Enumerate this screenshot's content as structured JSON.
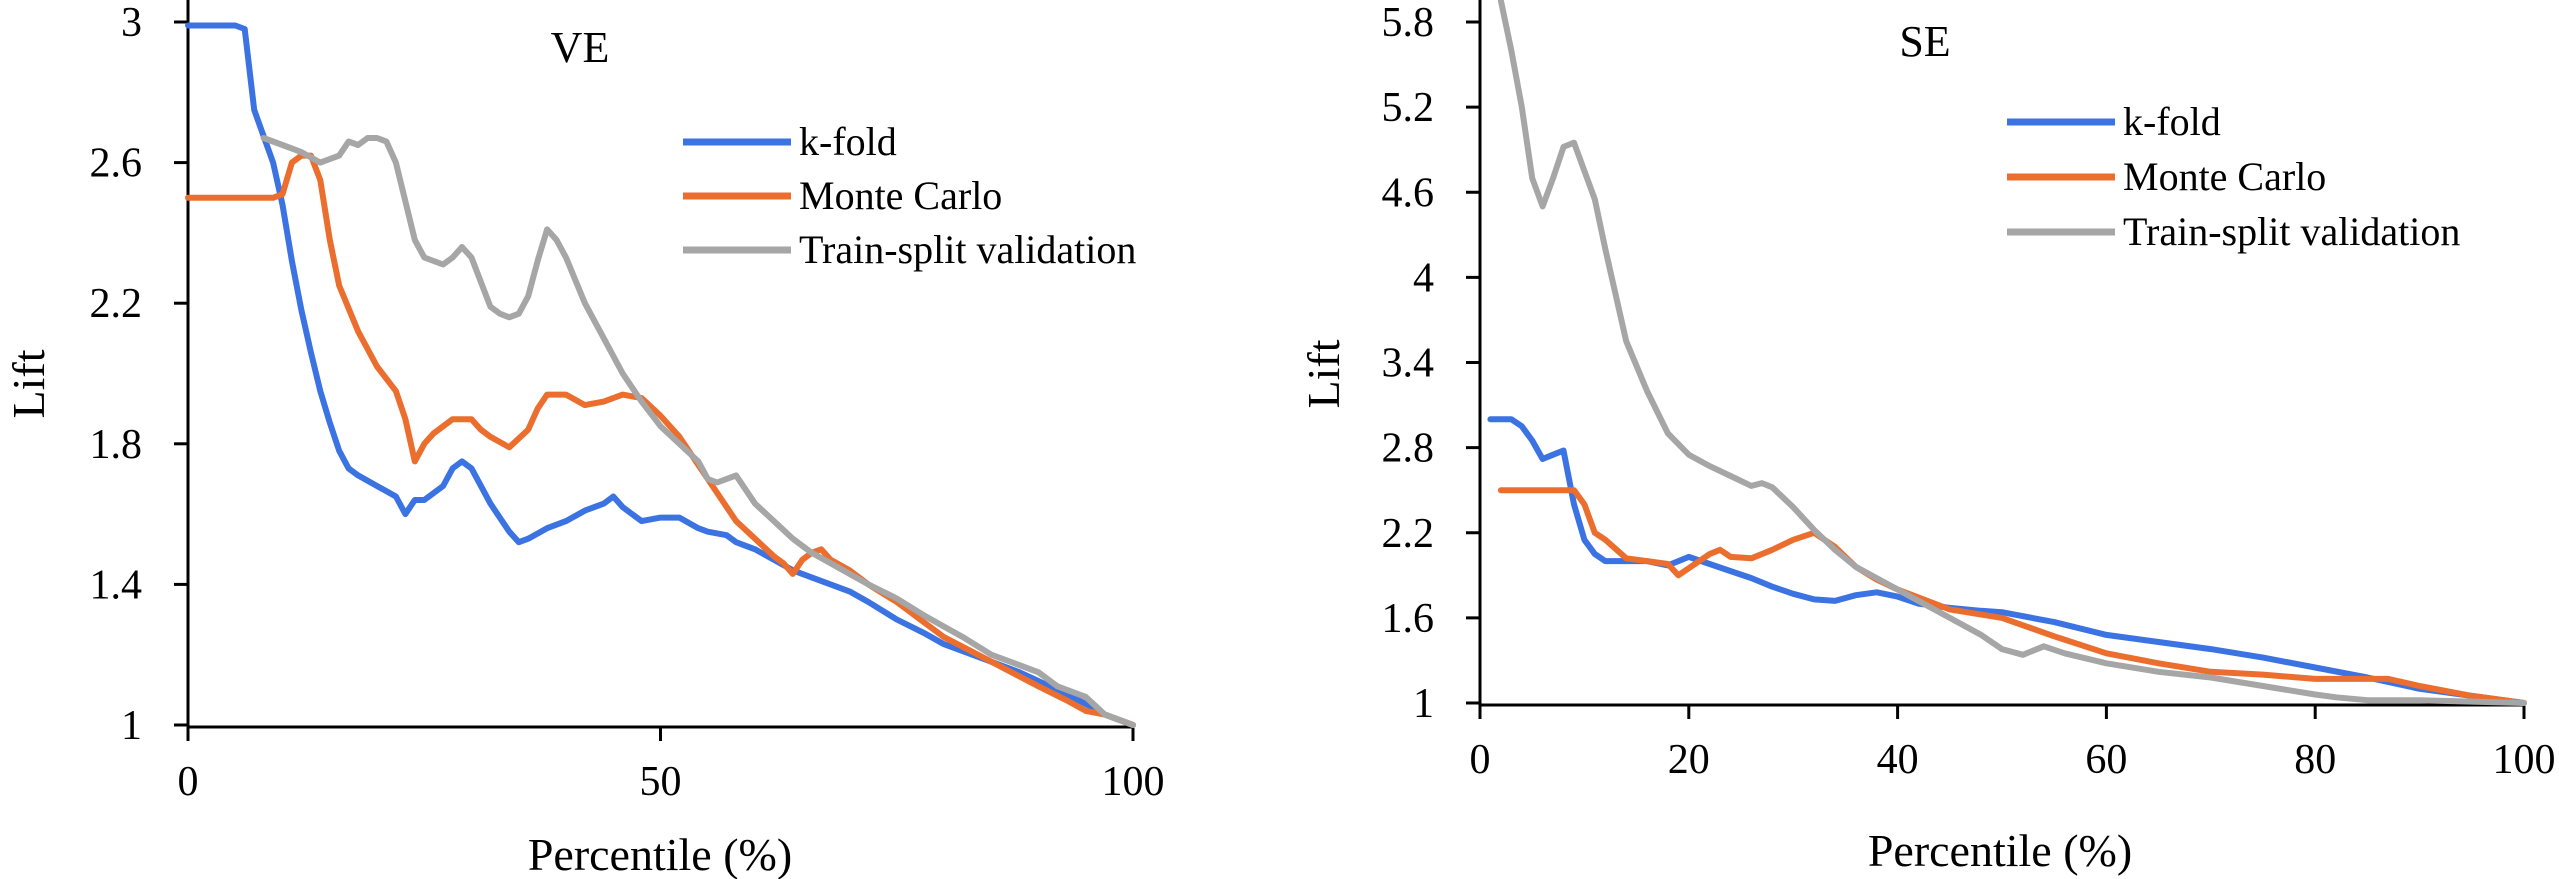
{
  "colors": {
    "k-fold": "#3B73E3",
    "Monte Carlo": "#EC6E2E",
    "Train-split validation": "#A6A6A6"
  },
  "chart_data": [
    {
      "type": "line",
      "title": "VE",
      "xlabel": "Percentile (%)",
      "ylabel": "Lift",
      "xlim": [
        0,
        100
      ],
      "ylim": [
        1,
        3
      ],
      "xticks": [
        "0",
        "50",
        "100"
      ],
      "yticks": [
        "1",
        "1.4",
        "1.8",
        "2.2",
        "2.6",
        "3"
      ],
      "grid": false,
      "legend": "top-right",
      "series": [
        {
          "name": "k-fold",
          "x": [
            0,
            3,
            5,
            6,
            7,
            9,
            10,
            11,
            12,
            13,
            14,
            15,
            16,
            17,
            18,
            20,
            22,
            23,
            24,
            25,
            27,
            28,
            29,
            30,
            32,
            34,
            35,
            36,
            38,
            40,
            42,
            44,
            45,
            46,
            47,
            48,
            50,
            52,
            54,
            55,
            57,
            58,
            60,
            62,
            64,
            65,
            66,
            68,
            70,
            72,
            75,
            78,
            80,
            84,
            88,
            92,
            95,
            97,
            99,
            100
          ],
          "y": [
            2.99,
            2.99,
            2.99,
            2.98,
            2.75,
            2.6,
            2.48,
            2.32,
            2.18,
            2.06,
            1.95,
            1.86,
            1.78,
            1.73,
            1.71,
            1.68,
            1.65,
            1.6,
            1.64,
            1.64,
            1.68,
            1.73,
            1.75,
            1.73,
            1.63,
            1.55,
            1.52,
            1.53,
            1.56,
            1.58,
            1.61,
            1.63,
            1.65,
            1.62,
            1.6,
            1.58,
            1.59,
            1.59,
            1.56,
            1.55,
            1.54,
            1.52,
            1.5,
            1.47,
            1.44,
            1.43,
            1.42,
            1.4,
            1.38,
            1.35,
            1.3,
            1.26,
            1.23,
            1.19,
            1.15,
            1.1,
            1.06,
            1.03,
            1.01,
            1
          ]
        },
        {
          "name": "Monte Carlo",
          "x": [
            0,
            3,
            6,
            8,
            9,
            10,
            11,
            12,
            13,
            14,
            15,
            16,
            18,
            20,
            22,
            23,
            24,
            25,
            26,
            28,
            30,
            31,
            32,
            34,
            36,
            37,
            38,
            40,
            42,
            44,
            46,
            48,
            50,
            52,
            54,
            56,
            58,
            60,
            62,
            63,
            64,
            65,
            66,
            67,
            68,
            70,
            72,
            75,
            78,
            80,
            85,
            90,
            93,
            95,
            97,
            100
          ],
          "y": [
            2.5,
            2.5,
            2.5,
            2.5,
            2.5,
            2.51,
            2.6,
            2.62,
            2.62,
            2.55,
            2.38,
            2.25,
            2.12,
            2.02,
            1.95,
            1.87,
            1.75,
            1.8,
            1.83,
            1.87,
            1.87,
            1.84,
            1.82,
            1.79,
            1.84,
            1.9,
            1.94,
            1.94,
            1.91,
            1.92,
            1.94,
            1.93,
            1.88,
            1.82,
            1.74,
            1.66,
            1.58,
            1.53,
            1.48,
            1.46,
            1.43,
            1.47,
            1.49,
            1.5,
            1.47,
            1.44,
            1.4,
            1.35,
            1.29,
            1.25,
            1.18,
            1.11,
            1.07,
            1.04,
            1.03,
            1
          ]
        },
        {
          "name": "Train-split validation",
          "x": [
            8,
            10,
            12,
            14,
            16,
            17,
            18,
            19,
            20,
            21,
            22,
            24,
            25,
            26,
            27,
            28,
            29,
            30,
            31,
            32,
            33,
            34,
            35,
            36,
            37,
            38,
            39,
            40,
            42,
            44,
            46,
            48,
            50,
            52,
            54,
            55,
            56,
            58,
            60,
            62,
            64,
            66,
            68,
            70,
            72,
            75,
            78,
            80,
            82,
            85,
            88,
            90,
            92,
            95,
            97,
            100
          ],
          "y": [
            2.67,
            2.65,
            2.63,
            2.6,
            2.62,
            2.66,
            2.65,
            2.67,
            2.67,
            2.66,
            2.6,
            2.38,
            2.33,
            2.32,
            2.31,
            2.33,
            2.36,
            2.33,
            2.26,
            2.19,
            2.17,
            2.16,
            2.17,
            2.22,
            2.32,
            2.41,
            2.38,
            2.33,
            2.2,
            2.1,
            2.0,
            1.92,
            1.85,
            1.8,
            1.75,
            1.7,
            1.69,
            1.71,
            1.63,
            1.58,
            1.53,
            1.49,
            1.46,
            1.43,
            1.4,
            1.36,
            1.31,
            1.28,
            1.25,
            1.2,
            1.17,
            1.15,
            1.11,
            1.08,
            1.03,
            1
          ]
        }
      ]
    },
    {
      "type": "line",
      "title": "SE",
      "xlabel": "Percentile (%)",
      "ylabel": "Lift",
      "xlim": [
        0,
        100
      ],
      "ylim": [
        1,
        5.8
      ],
      "xticks": [
        "0",
        "20",
        "40",
        "60",
        "80",
        "100"
      ],
      "yticks": [
        "1",
        "1.6",
        "2.2",
        "2.8",
        "3.4",
        "4",
        "4.6",
        "5.2",
        "5.8"
      ],
      "grid": false,
      "legend": "top-right",
      "series": [
        {
          "name": "k-fold",
          "x": [
            1,
            3,
            4,
            5,
            6,
            7,
            8,
            9,
            10,
            11,
            12,
            14,
            16,
            18,
            19,
            20,
            22,
            24,
            26,
            28,
            30,
            32,
            34,
            36,
            38,
            40,
            42,
            45,
            48,
            50,
            55,
            60,
            65,
            70,
            75,
            80,
            85,
            90,
            95,
            100
          ],
          "y": [
            3.0,
            3.0,
            2.95,
            2.85,
            2.72,
            2.75,
            2.78,
            2.4,
            2.15,
            2.05,
            2.0,
            2.0,
            2.0,
            1.97,
            2.0,
            2.03,
            1.98,
            1.93,
            1.88,
            1.82,
            1.77,
            1.73,
            1.72,
            1.76,
            1.78,
            1.75,
            1.7,
            1.67,
            1.65,
            1.64,
            1.57,
            1.48,
            1.43,
            1.38,
            1.32,
            1.25,
            1.18,
            1.1,
            1.05,
            1
          ]
        },
        {
          "name": "Monte Carlo",
          "x": [
            2,
            4,
            6,
            8,
            9,
            10,
            11,
            12,
            14,
            16,
            18,
            19,
            20,
            22,
            23,
            24,
            26,
            28,
            30,
            32,
            34,
            36,
            38,
            40,
            45,
            50,
            55,
            60,
            65,
            70,
            75,
            80,
            85,
            87,
            90,
            95,
            100
          ],
          "y": [
            2.5,
            2.5,
            2.5,
            2.5,
            2.5,
            2.4,
            2.2,
            2.15,
            2.02,
            2.0,
            1.98,
            1.9,
            1.95,
            2.05,
            2.08,
            2.03,
            2.02,
            2.08,
            2.15,
            2.2,
            2.1,
            1.96,
            1.87,
            1.8,
            1.66,
            1.6,
            1.47,
            1.35,
            1.28,
            1.22,
            1.2,
            1.17,
            1.17,
            1.17,
            1.12,
            1.05,
            1
          ]
        },
        {
          "name": "Train-split validation",
          "x": [
            2,
            3,
            4,
            5,
            6,
            7,
            8,
            9,
            10,
            11,
            12,
            14,
            16,
            18,
            20,
            22,
            24,
            26,
            27,
            28,
            29,
            30,
            32,
            34,
            36,
            38,
            40,
            45,
            48,
            50,
            52,
            54,
            56,
            60,
            65,
            70,
            75,
            80,
            82,
            85,
            90,
            95,
            100
          ],
          "y": [
            5.95,
            5.6,
            5.2,
            4.7,
            4.5,
            4.7,
            4.92,
            4.95,
            4.75,
            4.55,
            4.2,
            3.55,
            3.2,
            2.9,
            2.75,
            2.67,
            2.6,
            2.53,
            2.55,
            2.52,
            2.45,
            2.38,
            2.22,
            2.08,
            1.96,
            1.88,
            1.8,
            1.6,
            1.48,
            1.38,
            1.34,
            1.4,
            1.35,
            1.28,
            1.22,
            1.18,
            1.12,
            1.06,
            1.04,
            1.02,
            1.02,
            1.01,
            1
          ]
        }
      ]
    }
  ]
}
